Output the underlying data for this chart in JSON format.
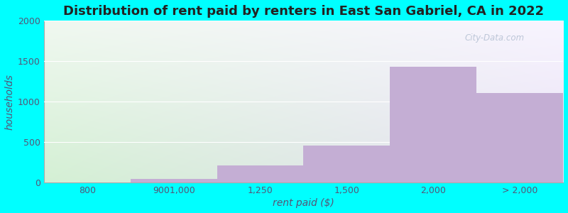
{
  "title": "Distribution of rent paid by renters in East San Gabriel, CA in 2022",
  "xlabel": "rent paid ($)",
  "ylabel": "households",
  "categories": [
    "800",
    "9001,000",
    "1,250",
    "1,500",
    "2,000",
    "> 2,000"
  ],
  "values": [
    0,
    45,
    215,
    460,
    1430,
    1110
  ],
  "bar_color": "#c4aed4",
  "bg_color": "#00ffff",
  "plot_bg_color_topleft": "#e8f8e8",
  "plot_bg_color_topright": "#f0eef8",
  "plot_bg_color_bottomleft": "#d8f5d8",
  "plot_bg_color_bottomright": "#e8e4f4",
  "ylim": [
    0,
    2000
  ],
  "yticks": [
    0,
    500,
    1000,
    1500,
    2000
  ],
  "title_fontsize": 13,
  "axis_label_fontsize": 10,
  "tick_fontsize": 9,
  "watermark": "City-Data.com"
}
